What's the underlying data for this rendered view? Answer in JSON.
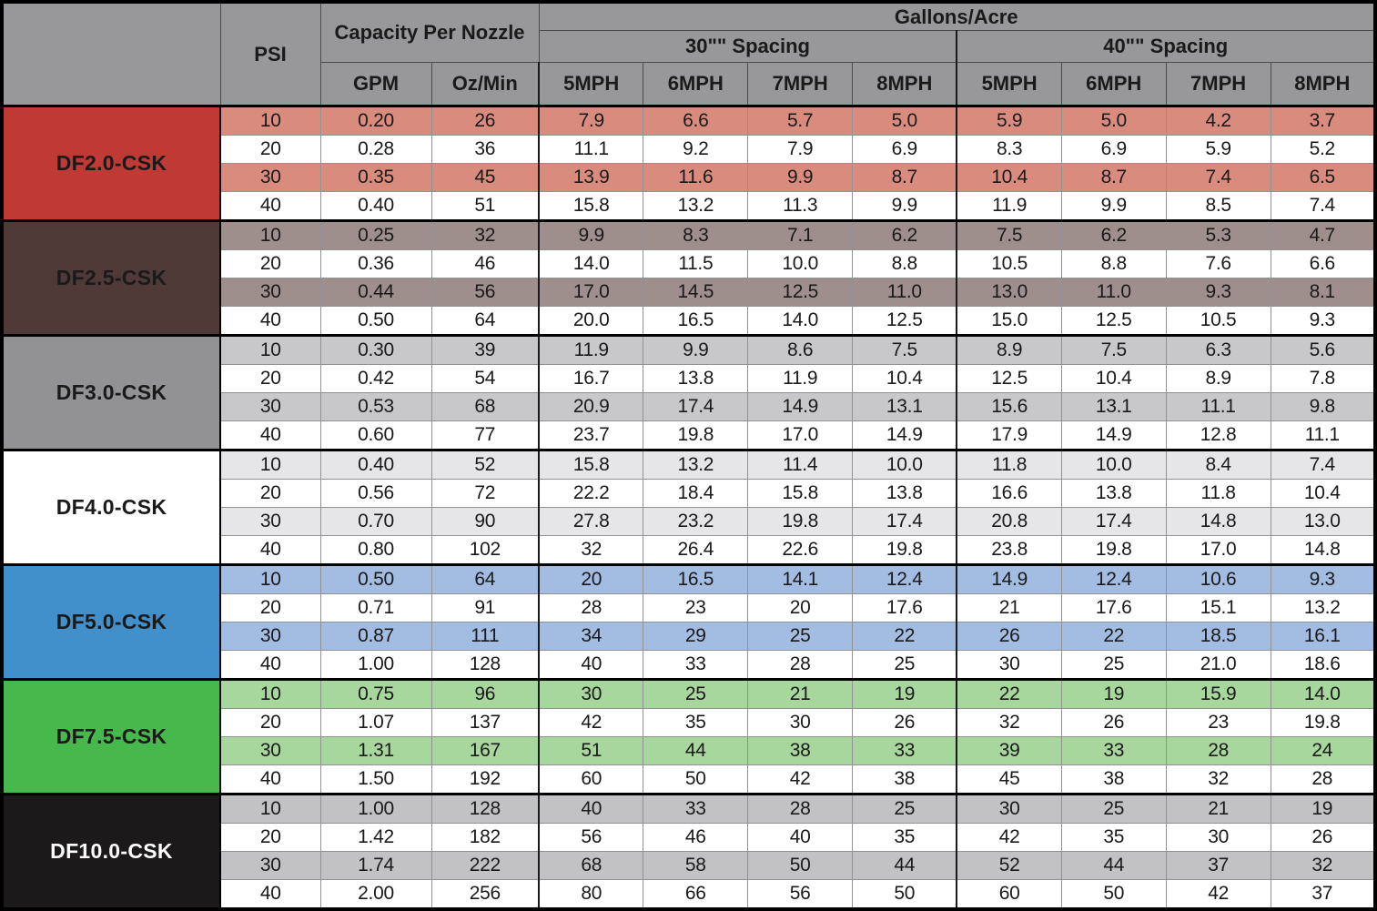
{
  "colors": {
    "header_bg": "#98989a",
    "grid_line": "#929294",
    "heavy_line": "#000000",
    "text": "#1a1a1a"
  },
  "header": {
    "corner": "",
    "psi": "PSI",
    "capacity": "Capacity Per Nozzle",
    "gallons": "Gallons/Acre",
    "spacing30": "30\"\" Spacing",
    "spacing40": "40\"\" Spacing",
    "gpm": "GPM",
    "ozmin": "Oz/Min",
    "mph": [
      "5MPH",
      "6MPH",
      "7MPH",
      "8MPH"
    ]
  },
  "chart_data": {
    "type": "table",
    "column_groups": [
      "Nozzle",
      "PSI",
      "Capacity Per Nozzle (GPM, Oz/Min)",
      "Gallons/Acre 30\"\" Spacing (5-8 MPH)",
      "Gallons/Acre 40\"\" Spacing (5-8 MPH)"
    ],
    "models": [
      {
        "model": "DF2.0-CSK",
        "label_bg": "#bf3a35",
        "label_fg": "#1a1a1a",
        "stripe_bg": "#d98c7e",
        "rows": [
          {
            "psi": "10",
            "gpm": "0.20",
            "oz_min": "26",
            "gal30": [
              "7.9",
              "6.6",
              "5.7",
              "5.0"
            ],
            "gal40": [
              "5.9",
              "5.0",
              "4.2",
              "3.7"
            ]
          },
          {
            "psi": "20",
            "gpm": "0.28",
            "oz_min": "36",
            "gal30": [
              "11.1",
              "9.2",
              "7.9",
              "6.9"
            ],
            "gal40": [
              "8.3",
              "6.9",
              "5.9",
              "5.2"
            ]
          },
          {
            "psi": "30",
            "gpm": "0.35",
            "oz_min": "45",
            "gal30": [
              "13.9",
              "11.6",
              "9.9",
              "8.7"
            ],
            "gal40": [
              "10.4",
              "8.7",
              "7.4",
              "6.5"
            ]
          },
          {
            "psi": "40",
            "gpm": "0.40",
            "oz_min": "51",
            "gal30": [
              "15.8",
              "13.2",
              "11.3",
              "9.9"
            ],
            "gal40": [
              "11.9",
              "9.9",
              "8.5",
              "7.4"
            ]
          }
        ]
      },
      {
        "model": "DF2.5-CSK",
        "label_bg": "#4f3a38",
        "label_fg": "#1a1a1a",
        "stripe_bg": "#9e8e8c",
        "rows": [
          {
            "psi": "10",
            "gpm": "0.25",
            "oz_min": "32",
            "gal30": [
              "9.9",
              "8.3",
              "7.1",
              "6.2"
            ],
            "gal40": [
              "7.5",
              "6.2",
              "5.3",
              "4.7"
            ]
          },
          {
            "psi": "20",
            "gpm": "0.36",
            "oz_min": "46",
            "gal30": [
              "14.0",
              "11.5",
              "10.0",
              "8.8"
            ],
            "gal40": [
              "10.5",
              "8.8",
              "7.6",
              "6.6"
            ]
          },
          {
            "psi": "30",
            "gpm": "0.44",
            "oz_min": "56",
            "gal30": [
              "17.0",
              "14.5",
              "12.5",
              "11.0"
            ],
            "gal40": [
              "13.0",
              "11.0",
              "9.3",
              "8.1"
            ]
          },
          {
            "psi": "40",
            "gpm": "0.50",
            "oz_min": "64",
            "gal30": [
              "20.0",
              "16.5",
              "14.0",
              "12.5"
            ],
            "gal40": [
              "15.0",
              "12.5",
              "10.5",
              "9.3"
            ]
          }
        ]
      },
      {
        "model": "DF3.0-CSK",
        "label_bg": "#929294",
        "label_fg": "#1a1a1a",
        "stripe_bg": "#c8c8ca",
        "rows": [
          {
            "psi": "10",
            "gpm": "0.30",
            "oz_min": "39",
            "gal30": [
              "11.9",
              "9.9",
              "8.6",
              "7.5"
            ],
            "gal40": [
              "8.9",
              "7.5",
              "6.3",
              "5.6"
            ]
          },
          {
            "psi": "20",
            "gpm": "0.42",
            "oz_min": "54",
            "gal30": [
              "16.7",
              "13.8",
              "11.9",
              "10.4"
            ],
            "gal40": [
              "12.5",
              "10.4",
              "8.9",
              "7.8"
            ]
          },
          {
            "psi": "30",
            "gpm": "0.53",
            "oz_min": "68",
            "gal30": [
              "20.9",
              "17.4",
              "14.9",
              "13.1"
            ],
            "gal40": [
              "15.6",
              "13.1",
              "11.1",
              "9.8"
            ]
          },
          {
            "psi": "40",
            "gpm": "0.60",
            "oz_min": "77",
            "gal30": [
              "23.7",
              "19.8",
              "17.0",
              "14.9"
            ],
            "gal40": [
              "17.9",
              "14.9",
              "12.8",
              "11.1"
            ]
          }
        ]
      },
      {
        "model": "DF4.0-CSK",
        "label_bg": "#ffffff",
        "label_fg": "#1a1a1a",
        "stripe_bg": "#e6e6e8",
        "rows": [
          {
            "psi": "10",
            "gpm": "0.40",
            "oz_min": "52",
            "gal30": [
              "15.8",
              "13.2",
              "11.4",
              "10.0"
            ],
            "gal40": [
              "11.8",
              "10.0",
              "8.4",
              "7.4"
            ]
          },
          {
            "psi": "20",
            "gpm": "0.56",
            "oz_min": "72",
            "gal30": [
              "22.2",
              "18.4",
              "15.8",
              "13.8"
            ],
            "gal40": [
              "16.6",
              "13.8",
              "11.8",
              "10.4"
            ]
          },
          {
            "psi": "30",
            "gpm": "0.70",
            "oz_min": "90",
            "gal30": [
              "27.8",
              "23.2",
              "19.8",
              "17.4"
            ],
            "gal40": [
              "20.8",
              "17.4",
              "14.8",
              "13.0"
            ]
          },
          {
            "psi": "40",
            "gpm": "0.80",
            "oz_min": "102",
            "gal30": [
              "32",
              "26.4",
              "22.6",
              "19.8"
            ],
            "gal40": [
              "23.8",
              "19.8",
              "17.0",
              "14.8"
            ]
          }
        ]
      },
      {
        "model": "DF5.0-CSK",
        "label_bg": "#4190cc",
        "label_fg": "#1a1a1a",
        "stripe_bg": "#a2bce2",
        "rows": [
          {
            "psi": "10",
            "gpm": "0.50",
            "oz_min": "64",
            "gal30": [
              "20",
              "16.5",
              "14.1",
              "12.4"
            ],
            "gal40": [
              "14.9",
              "12.4",
              "10.6",
              "9.3"
            ]
          },
          {
            "psi": "20",
            "gpm": "0.71",
            "oz_min": "91",
            "gal30": [
              "28",
              "23",
              "20",
              "17.6"
            ],
            "gal40": [
              "21",
              "17.6",
              "15.1",
              "13.2"
            ]
          },
          {
            "psi": "30",
            "gpm": "0.87",
            "oz_min": "111",
            "gal30": [
              "34",
              "29",
              "25",
              "22"
            ],
            "gal40": [
              "26",
              "22",
              "18.5",
              "16.1"
            ]
          },
          {
            "psi": "40",
            "gpm": "1.00",
            "oz_min": "128",
            "gal30": [
              "40",
              "33",
              "28",
              "25"
            ],
            "gal40": [
              "30",
              "25",
              "21.0",
              "18.6"
            ]
          }
        ]
      },
      {
        "model": "DF7.5-CSK",
        "label_bg": "#47b84c",
        "label_fg": "#1a1a1a",
        "stripe_bg": "#a8d79d",
        "rows": [
          {
            "psi": "10",
            "gpm": "0.75",
            "oz_min": "96",
            "gal30": [
              "30",
              "25",
              "21",
              "19"
            ],
            "gal40": [
              "22",
              "19",
              "15.9",
              "14.0"
            ]
          },
          {
            "psi": "20",
            "gpm": "1.07",
            "oz_min": "137",
            "gal30": [
              "42",
              "35",
              "30",
              "26"
            ],
            "gal40": [
              "32",
              "26",
              "23",
              "19.8"
            ]
          },
          {
            "psi": "30",
            "gpm": "1.31",
            "oz_min": "167",
            "gal30": [
              "51",
              "44",
              "38",
              "33"
            ],
            "gal40": [
              "39",
              "33",
              "28",
              "24"
            ]
          },
          {
            "psi": "40",
            "gpm": "1.50",
            "oz_min": "192",
            "gal30": [
              "60",
              "50",
              "42",
              "38"
            ],
            "gal40": [
              "45",
              "38",
              "32",
              "28"
            ]
          }
        ]
      },
      {
        "model": "DF10.0-CSK",
        "label_bg": "#1b191a",
        "label_fg": "#ffffff",
        "stripe_bg": "#c2c2c4",
        "rows": [
          {
            "psi": "10",
            "gpm": "1.00",
            "oz_min": "128",
            "gal30": [
              "40",
              "33",
              "28",
              "25"
            ],
            "gal40": [
              "30",
              "25",
              "21",
              "19"
            ]
          },
          {
            "psi": "20",
            "gpm": "1.42",
            "oz_min": "182",
            "gal30": [
              "56",
              "46",
              "40",
              "35"
            ],
            "gal40": [
              "42",
              "35",
              "30",
              "26"
            ]
          },
          {
            "psi": "30",
            "gpm": "1.74",
            "oz_min": "222",
            "gal30": [
              "68",
              "58",
              "50",
              "44"
            ],
            "gal40": [
              "52",
              "44",
              "37",
              "32"
            ]
          },
          {
            "psi": "40",
            "gpm": "2.00",
            "oz_min": "256",
            "gal30": [
              "80",
              "66",
              "56",
              "50"
            ],
            "gal40": [
              "60",
              "50",
              "42",
              "37"
            ]
          }
        ]
      }
    ]
  }
}
